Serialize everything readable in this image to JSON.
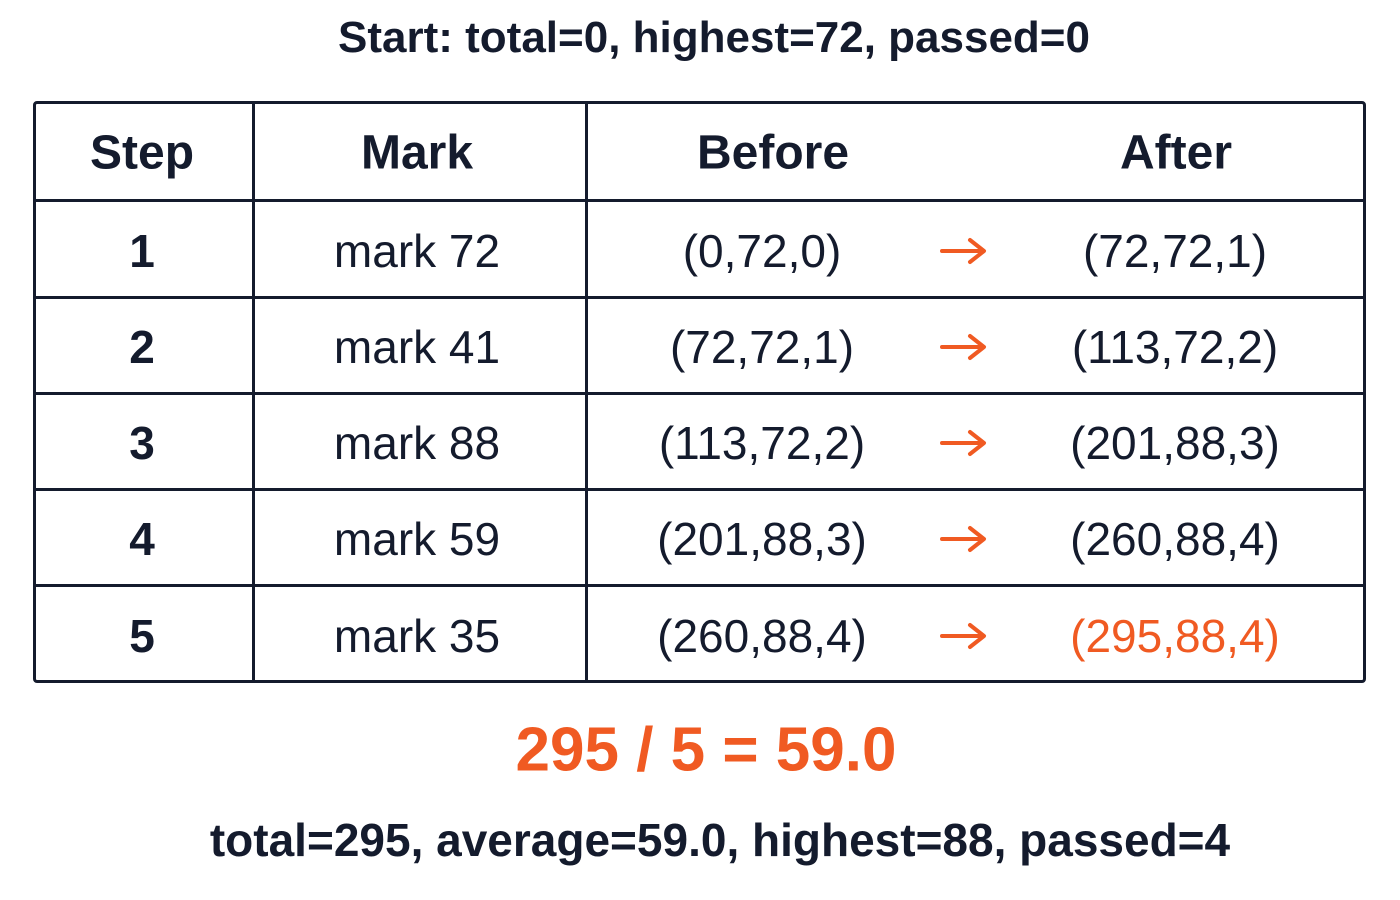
{
  "header": {
    "title": "Start: total=0, highest=72, passed=0"
  },
  "table": {
    "columns": [
      "Step",
      "Mark",
      "Before",
      "After"
    ],
    "rows": [
      [
        "1",
        "mark 72",
        "(0,72,0)",
        "(72,72,1)"
      ],
      [
        "2",
        "mark 41",
        "(72,72,1)",
        "(113,72,2)"
      ],
      [
        "3",
        "mark 88",
        "(113,72,2)",
        "(201,88,3)"
      ],
      [
        "4",
        "mark 59",
        "(201,88,3)",
        "(260,88,4)"
      ],
      [
        "5",
        "mark 35",
        "(260,88,4)",
        "(295,88,4)"
      ]
    ]
  },
  "result": {
    "equation": "295 / 5 = 59.0",
    "summary": "total=295, average=59.0, highest=88, passed=4"
  }
}
